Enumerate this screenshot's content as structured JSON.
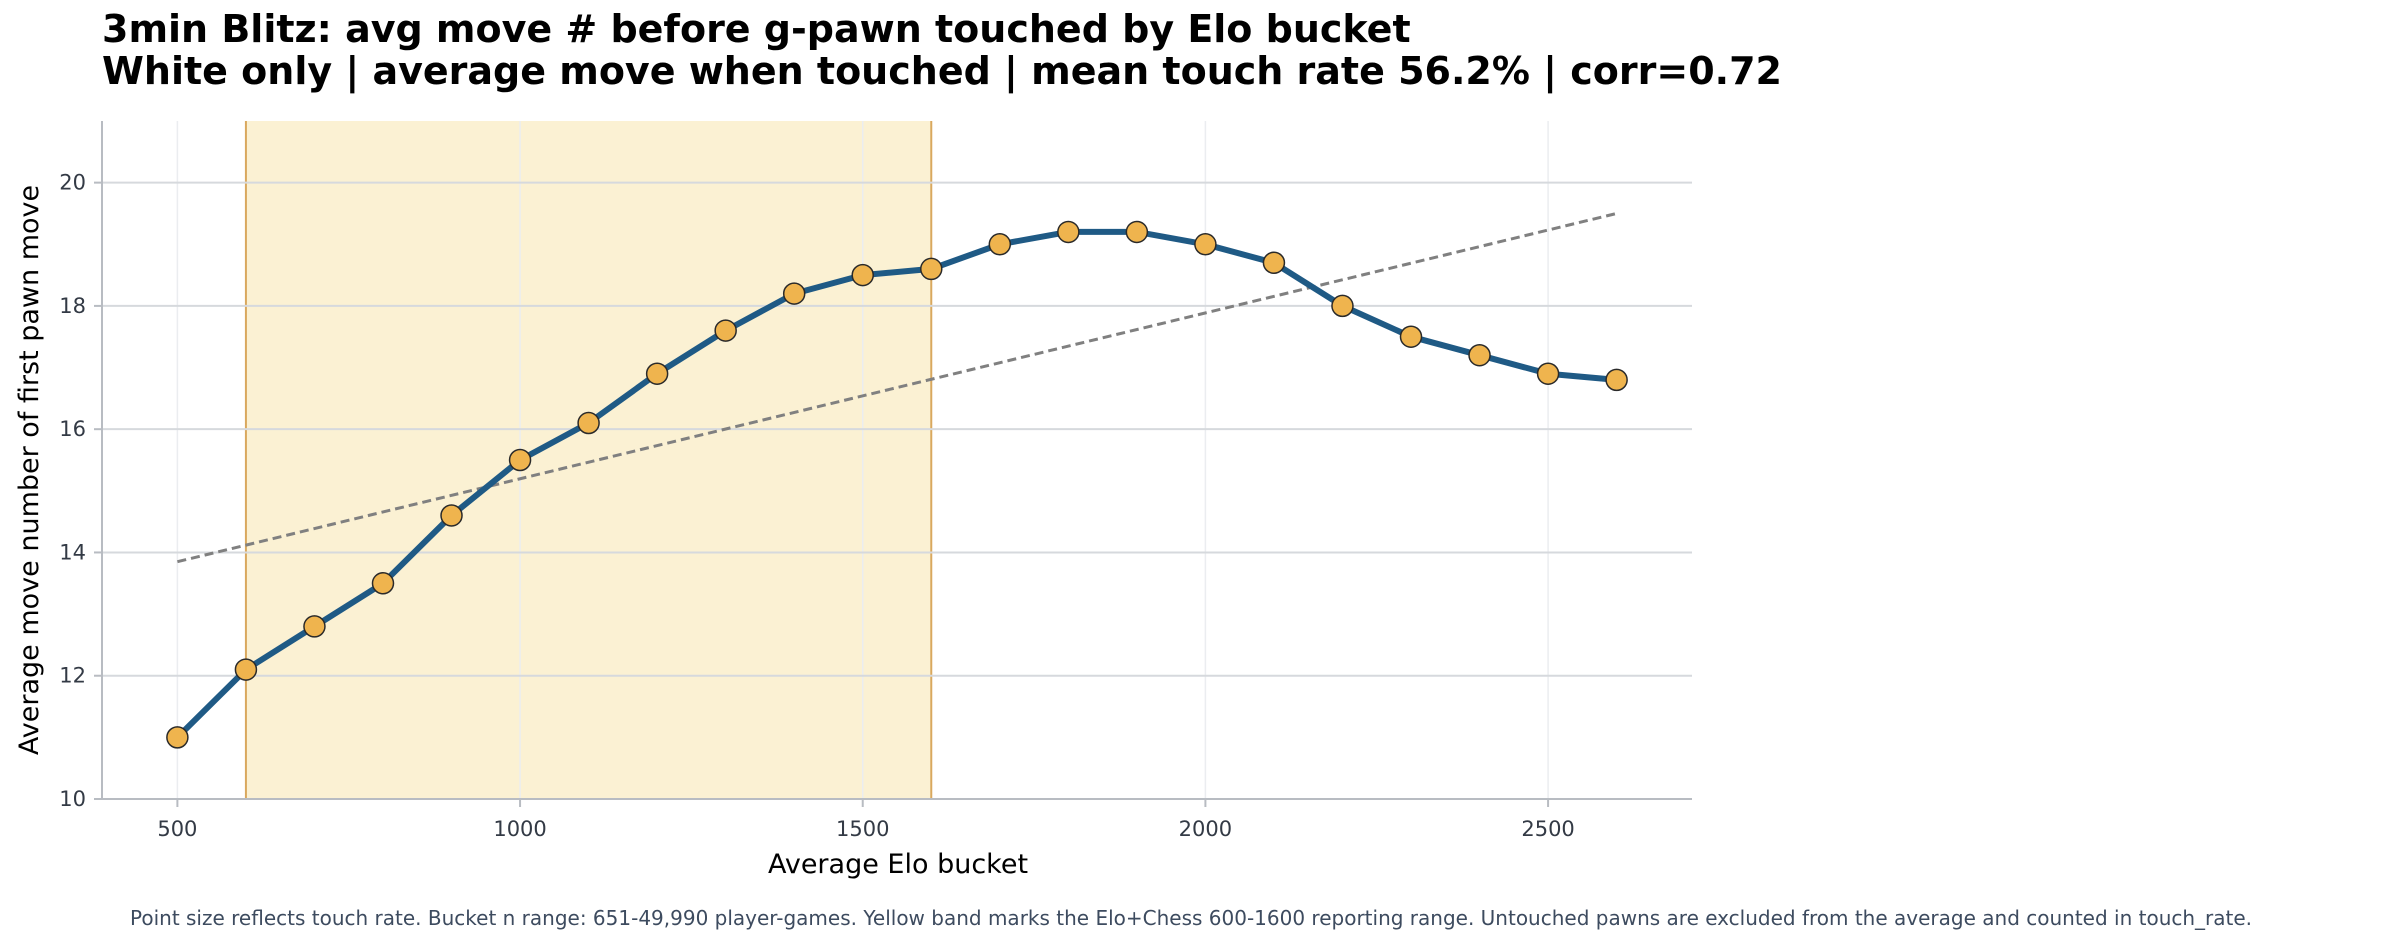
{
  "chart_data": {
    "type": "line",
    "title": "3min Blitz: avg move # before g-pawn touched by Elo bucket",
    "subtitle": "White only | average move when touched | mean touch rate 56.2% | corr=0.72",
    "xlabel": "Average Elo bucket",
    "ylabel": "Average move number of first pawn move",
    "xlim": [
      390,
      2710
    ],
    "ylim": [
      10,
      21
    ],
    "x_ticks": [
      500,
      1000,
      1500,
      2000,
      2500
    ],
    "y_ticks": [
      10,
      12,
      14,
      16,
      18,
      20
    ],
    "grid": true,
    "x": [
      500,
      600,
      700,
      800,
      900,
      1000,
      1100,
      1200,
      1300,
      1400,
      1500,
      1600,
      1700,
      1800,
      1900,
      2000,
      2100,
      2200,
      2300,
      2400,
      2500,
      2600
    ],
    "series": [
      {
        "values": [
          11.0,
          12.1,
          12.8,
          13.5,
          14.6,
          15.5,
          16.1,
          16.9,
          17.6,
          18.2,
          18.5,
          18.6,
          19.0,
          19.2,
          19.2,
          19.0,
          18.7,
          18.0,
          17.5,
          17.2,
          16.9,
          16.8
        ]
      }
    ],
    "trendline": {
      "x": [
        500,
        2600
      ],
      "y": [
        13.85,
        19.5
      ]
    },
    "highlight_band": {
      "x": [
        600,
        1600
      ]
    },
    "caption": "Point size reflects touch rate. Bucket n range: 651-49,990 player-games. Yellow band marks the Elo+Chess 600-1600 reporting range. Untouched pawns are excluded from the average and counted in touch_rate.",
    "colors": {
      "line": "#1f5a85",
      "marker_fill": "#efb44e",
      "marker_edge": "#2a2a2a",
      "band_fill": "#fbf1d3",
      "band_edge": "#d9a85e",
      "trend": "#808080",
      "grid": "#d6d9dd",
      "axis_text": "#333a45"
    }
  }
}
